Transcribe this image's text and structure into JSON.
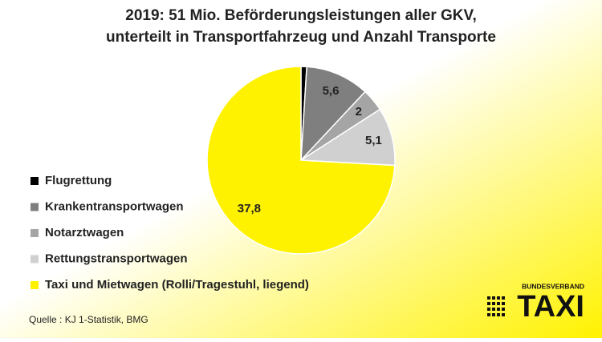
{
  "chart_data": {
    "type": "pie",
    "title": [
      "2019: 51 Mio. Beförderungsleistungen aller GKV,",
      "unterteilt in Transportfahrzeug und Anzahl Transporte"
    ],
    "categories": [
      "Flugrettung",
      "Krankentransportwagen",
      "Notarztwagen",
      "Rettungstransportwagen",
      "Taxi und Mietwagen (Rolli/Tragestuhl, liegend)"
    ],
    "values": [
      0.5,
      5.6,
      2,
      5.1,
      37.8
    ],
    "value_labels": [
      null,
      "5,6",
      "2",
      "5,1",
      "37,8"
    ],
    "colors": [
      "#000000",
      "#7f7f7f",
      "#a5a5a5",
      "#d0d0d0",
      "#fff200"
    ],
    "source": "Quelle : KJ 1-Statistik, BMG",
    "logo": {
      "top": "BUNDESVERBAND",
      "main": "TAXI"
    }
  }
}
